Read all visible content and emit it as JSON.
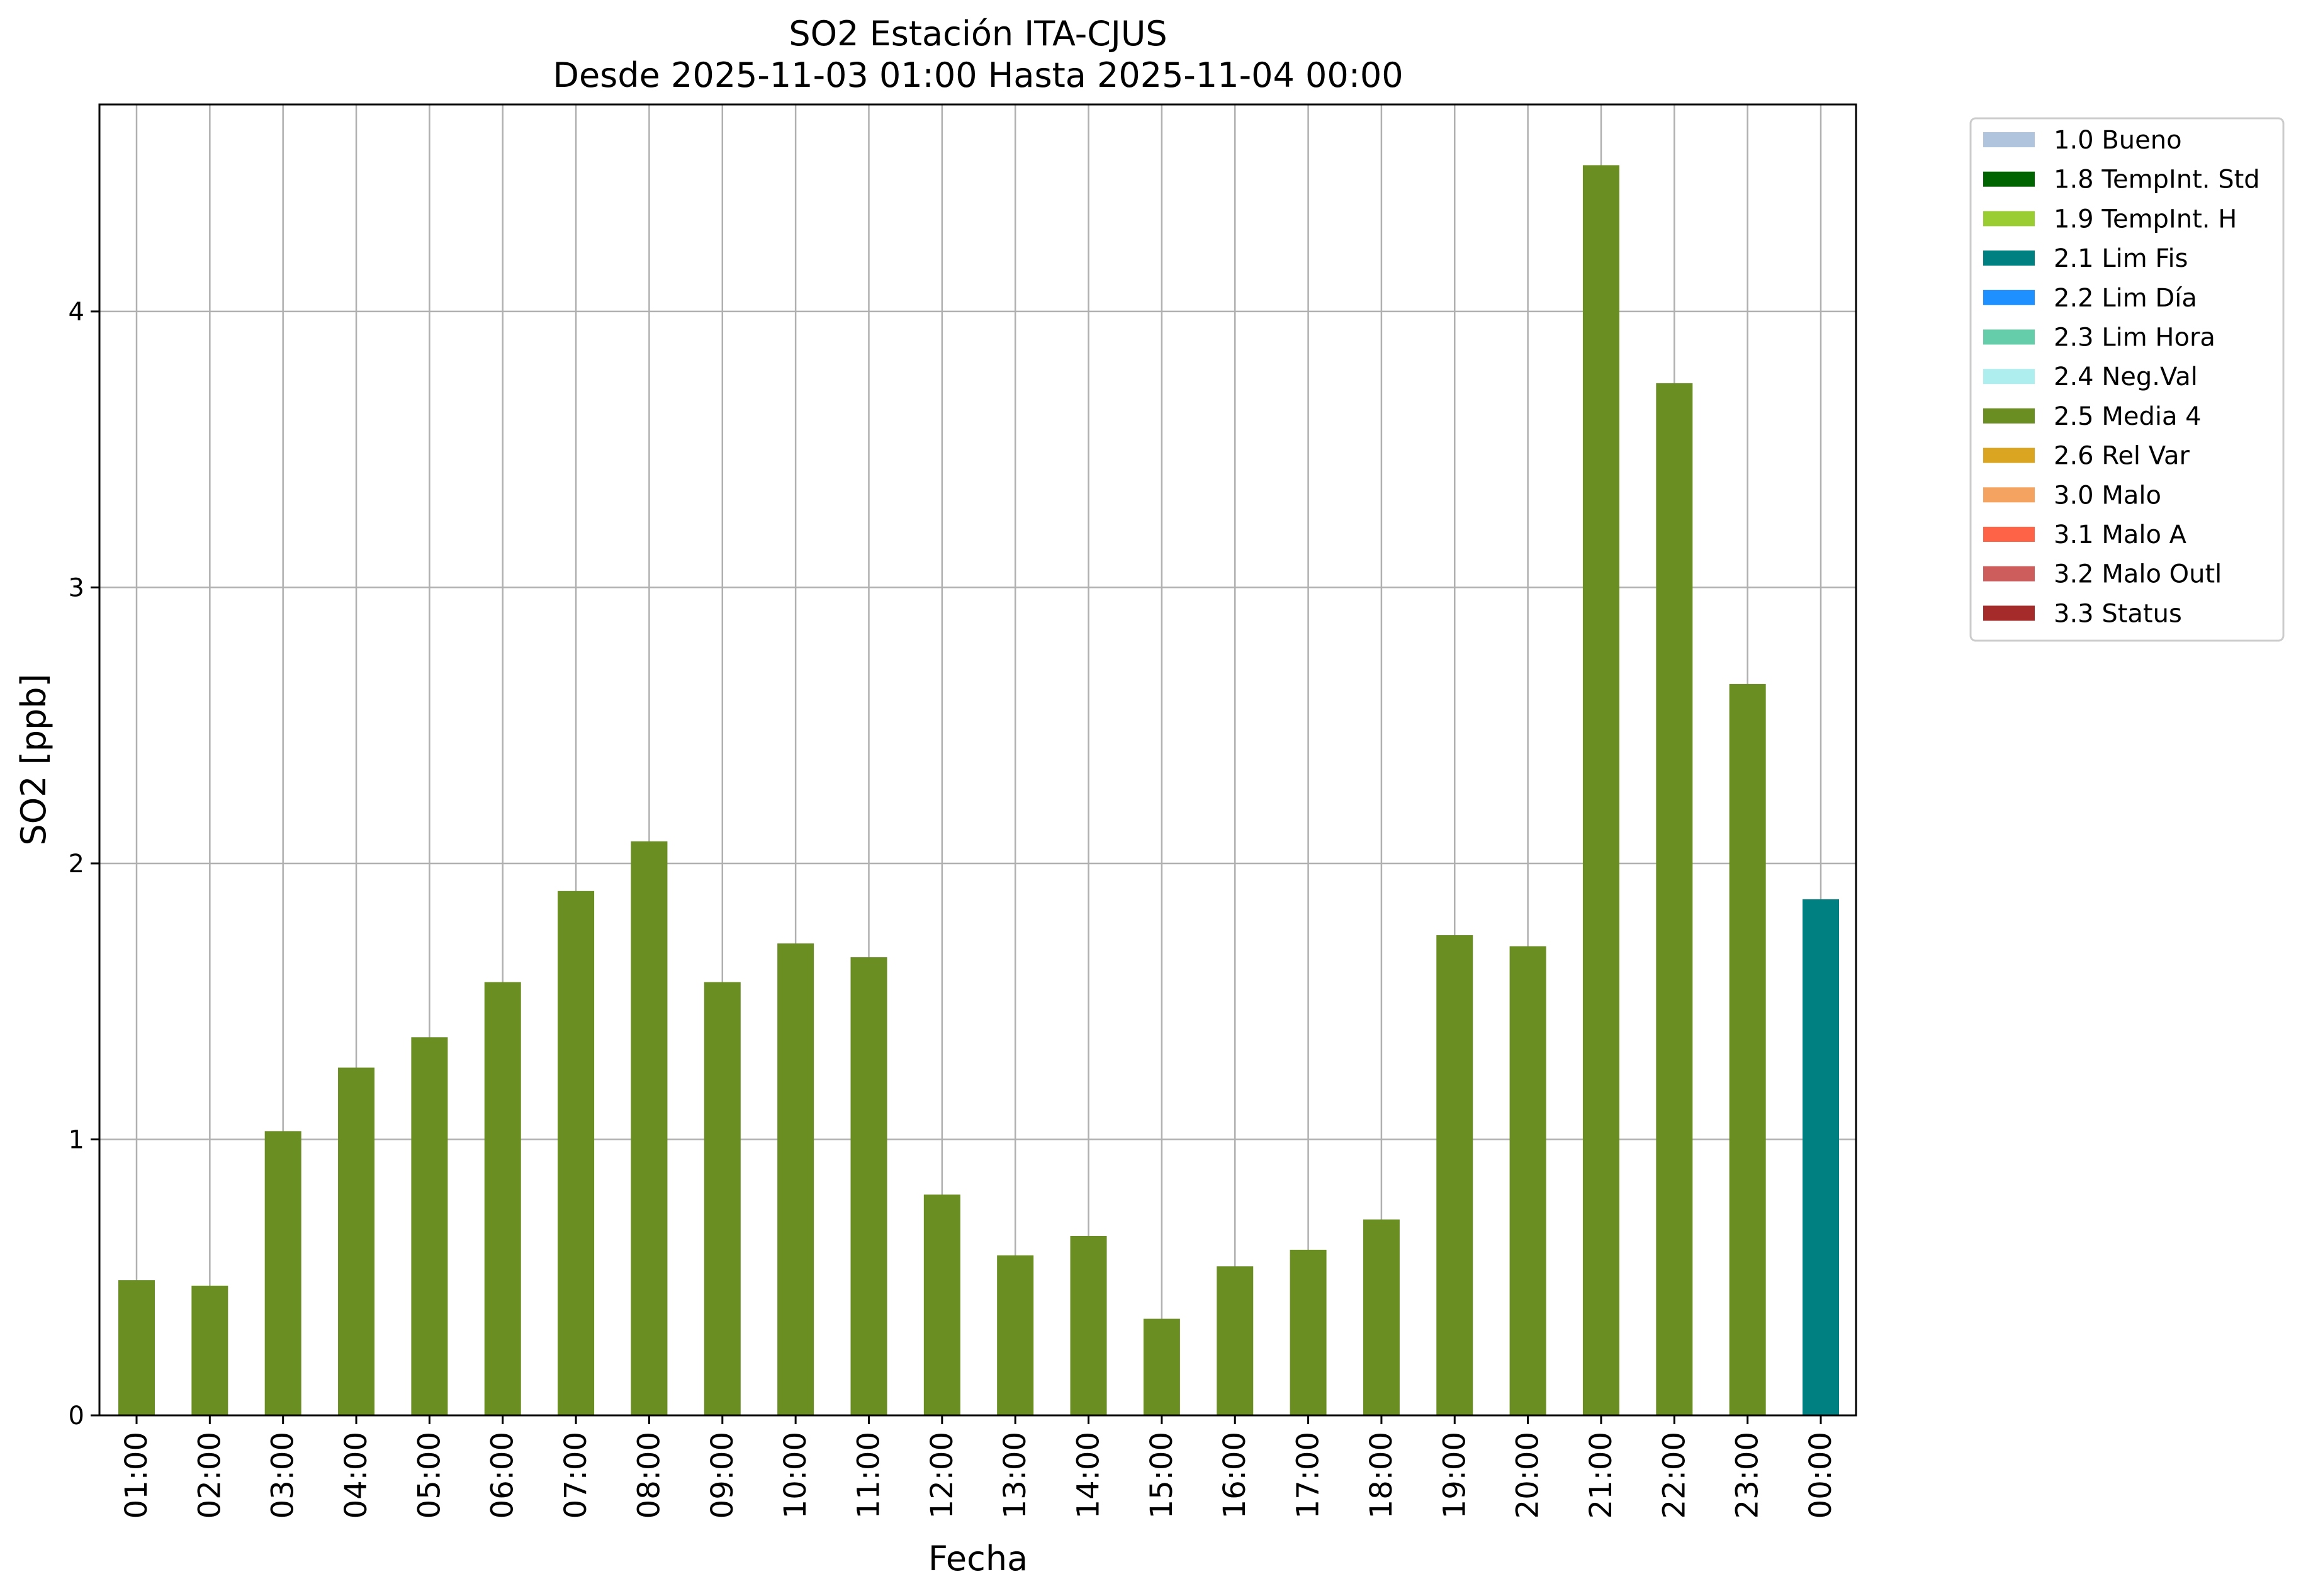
{
  "chart_data": {
    "type": "bar",
    "title": "SO2 Estación ITA-CJUS",
    "subtitle": "Desde 2025-11-03 01:00 Hasta 2025-11-04 00:00",
    "xlabel": "Fecha",
    "ylabel": "SO2 [ppb]",
    "ylim": [
      0,
      4.75
    ],
    "yticks": [
      0,
      1,
      2,
      3,
      4
    ],
    "grid": true,
    "legend_position": "outside-top-right",
    "categories": [
      "01:00",
      "02:00",
      "03:00",
      "04:00",
      "05:00",
      "06:00",
      "07:00",
      "08:00",
      "09:00",
      "10:00",
      "11:00",
      "12:00",
      "13:00",
      "14:00",
      "15:00",
      "16:00",
      "17:00",
      "18:00",
      "19:00",
      "20:00",
      "21:00",
      "22:00",
      "23:00",
      "00:00"
    ],
    "values": [
      0.49,
      0.47,
      1.03,
      1.26,
      1.37,
      1.57,
      1.9,
      2.08,
      1.57,
      1.71,
      1.66,
      0.8,
      0.58,
      0.65,
      0.35,
      0.54,
      0.6,
      0.71,
      1.74,
      1.7,
      4.53,
      3.74,
      2.65,
      1.87
    ],
    "bar_flags": [
      "2.5 Media 4",
      "2.5 Media 4",
      "2.5 Media 4",
      "2.5 Media 4",
      "2.5 Media 4",
      "2.5 Media 4",
      "2.5 Media 4",
      "2.5 Media 4",
      "2.5 Media 4",
      "2.5 Media 4",
      "2.5 Media 4",
      "2.5 Media 4",
      "2.5 Media 4",
      "2.5 Media 4",
      "2.5 Media 4",
      "2.5 Media 4",
      "2.5 Media 4",
      "2.5 Media 4",
      "2.5 Media 4",
      "2.5 Media 4",
      "2.5 Media 4",
      "2.5 Media 4",
      "2.5 Media 4",
      "2.1 Lim Fis"
    ],
    "legend": [
      {
        "label": "1.0 Bueno",
        "color": "#b0c4de"
      },
      {
        "label": "1.8 TempInt. Std",
        "color": "#006400"
      },
      {
        "label": "1.9 TempInt. H",
        "color": "#9acd32"
      },
      {
        "label": "2.1 Lim Fis",
        "color": "#008080"
      },
      {
        "label": "2.2 Lim Día",
        "color": "#1e90ff"
      },
      {
        "label": "2.3 Lim Hora",
        "color": "#66cdaa"
      },
      {
        "label": "2.4 Neg.Val",
        "color": "#afeeee"
      },
      {
        "label": "2.5 Media 4",
        "color": "#6b8e23"
      },
      {
        "label": "2.6 Rel Var",
        "color": "#daa520"
      },
      {
        "label": "3.0 Malo",
        "color": "#f4a460"
      },
      {
        "label": "3.1 Malo A",
        "color": "#ff6347"
      },
      {
        "label": "3.2 Malo Outl",
        "color": "#cd5c5c"
      },
      {
        "label": "3.3 Status",
        "color": "#a52a2a"
      }
    ]
  }
}
